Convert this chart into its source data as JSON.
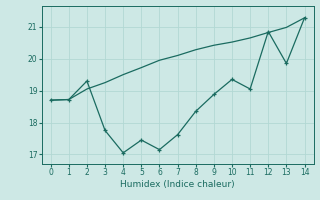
{
  "xlabel": "Humidex (Indice chaleur)",
  "background_color": "#cde8e5",
  "grid_color": "#b2d8d4",
  "line_color": "#1a6b60",
  "line1_x": [
    0,
    1,
    2,
    3,
    4,
    5,
    6,
    7,
    8,
    9,
    10,
    11,
    12,
    13,
    14
  ],
  "line1_y": [
    18.7,
    18.72,
    19.05,
    19.25,
    19.5,
    19.72,
    19.95,
    20.1,
    20.28,
    20.42,
    20.52,
    20.65,
    20.82,
    20.98,
    21.28
  ],
  "line2_x": [
    0,
    1,
    2,
    3,
    4,
    5,
    6,
    7,
    8,
    9,
    10,
    11,
    12,
    13,
    14
  ],
  "line2_y": [
    18.7,
    18.72,
    19.3,
    17.75,
    17.05,
    17.45,
    17.15,
    17.62,
    18.35,
    18.88,
    19.35,
    19.05,
    20.85,
    19.85,
    21.28
  ],
  "ylim": [
    16.7,
    21.65
  ],
  "yticks": [
    17,
    18,
    19,
    20,
    21
  ],
  "xlim": [
    -0.5,
    14.5
  ],
  "xticks": [
    0,
    1,
    2,
    3,
    4,
    5,
    6,
    7,
    8,
    9,
    10,
    11,
    12,
    13,
    14
  ]
}
